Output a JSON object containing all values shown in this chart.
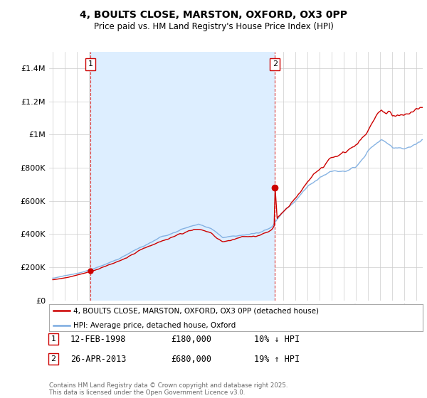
{
  "title": "4, BOULTS CLOSE, MARSTON, OXFORD, OX3 0PP",
  "subtitle": "Price paid vs. HM Land Registry's House Price Index (HPI)",
  "xlim": [
    1994.7,
    2025.5
  ],
  "ylim": [
    0,
    1500000
  ],
  "yticks": [
    0,
    200000,
    400000,
    600000,
    800000,
    1000000,
    1200000,
    1400000
  ],
  "ytick_labels": [
    "£0",
    "£200K",
    "£400K",
    "£600K",
    "£800K",
    "£1M",
    "£1.2M",
    "£1.4M"
  ],
  "xticks": [
    1995,
    1996,
    1997,
    1998,
    1999,
    2000,
    2001,
    2002,
    2003,
    2004,
    2005,
    2006,
    2007,
    2008,
    2009,
    2010,
    2011,
    2012,
    2013,
    2014,
    2015,
    2016,
    2017,
    2018,
    2019,
    2020,
    2021,
    2022,
    2023,
    2024,
    2025
  ],
  "red_line_color": "#cc0000",
  "blue_line_color": "#7aabe0",
  "shade_color": "#ddeeff",
  "purchase1_x": 1998.12,
  "purchase1_y": 180000,
  "purchase1_label": "1",
  "purchase2_x": 2013.32,
  "purchase2_y": 680000,
  "purchase2_label": "2",
  "legend_red_label": "4, BOULTS CLOSE, MARSTON, OXFORD, OX3 0PP (detached house)",
  "legend_blue_label": "HPI: Average price, detached house, Oxford",
  "annotation1_num": "1",
  "annotation1_date": "12-FEB-1998",
  "annotation1_price": "£180,000",
  "annotation1_hpi": "10% ↓ HPI",
  "annotation2_num": "2",
  "annotation2_date": "26-APR-2013",
  "annotation2_price": "£680,000",
  "annotation2_hpi": "19% ↑ HPI",
  "footer": "Contains HM Land Registry data © Crown copyright and database right 2025.\nThis data is licensed under the Open Government Licence v3.0.",
  "background_color": "#ffffff",
  "grid_color": "#cccccc"
}
